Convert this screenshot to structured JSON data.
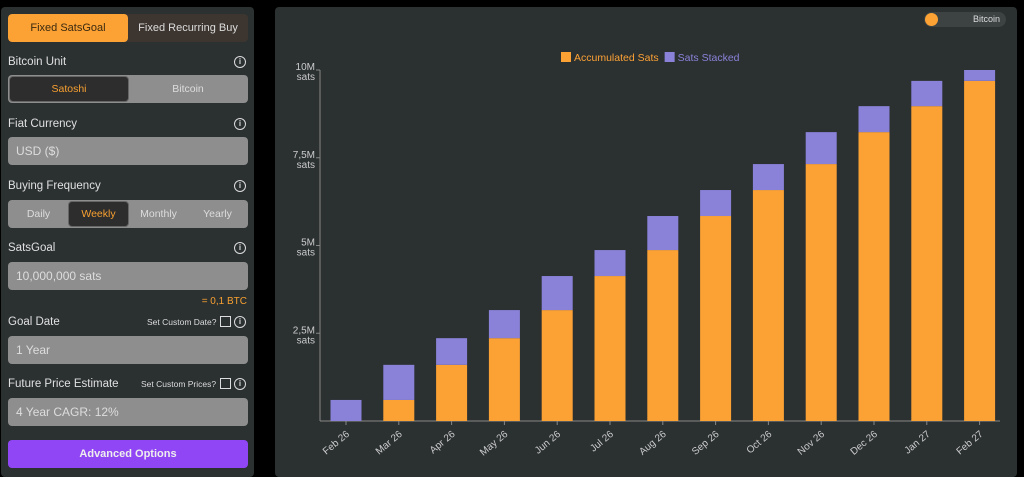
{
  "left": {
    "modes": [
      "Fixed SatsGoal",
      "Fixed Recurring Buy"
    ],
    "bitcoin_unit": {
      "label": "Bitcoin Unit",
      "options": [
        "Satoshi",
        "Bitcoin"
      ],
      "selected": "Satoshi"
    },
    "fiat_currency": {
      "label": "Fiat Currency",
      "value": "USD ($)"
    },
    "buying_frequency": {
      "label": "Buying Frequency",
      "options": [
        "Daily",
        "Weekly",
        "Monthly",
        "Yearly"
      ],
      "selected": "Weekly"
    },
    "sats_goal": {
      "label": "SatsGoal",
      "value": "10,000,000 sats",
      "btc_equiv": "= 0,1 BTC"
    },
    "goal_date": {
      "label": "Goal Date",
      "custom_label": "Set Custom Date?",
      "value": "1 Year"
    },
    "future_price": {
      "label": "Future Price Estimate",
      "custom_label": "Set Custom Prices?",
      "value": "4 Year CAGR: 12%"
    },
    "advanced": "Advanced Options"
  },
  "toggle_label": "Bitcoin",
  "colors": {
    "accumulated": "#fca235",
    "stacked": "#8a82d9"
  },
  "chart_data": {
    "type": "bar",
    "stacked": true,
    "categories": [
      "Feb 26",
      "Mar 26",
      "Apr 26",
      "May 26",
      "Jun 26",
      "Jul 26",
      "Aug 26",
      "Sep 26",
      "Oct 26",
      "Nov 26",
      "Dec 26",
      "Jan 27",
      "Feb 27"
    ],
    "series": [
      {
        "name": "Accumulated Sats",
        "values": [
          0,
          600000,
          1600000,
          2360000,
          3160000,
          4130000,
          4870000,
          5840000,
          6580000,
          7320000,
          8230000,
          8970000,
          9690000
        ]
      },
      {
        "name": "Sats Stacked",
        "values": [
          600000,
          1000000,
          760000,
          800000,
          970000,
          740000,
          970000,
          740000,
          740000,
          910000,
          740000,
          720000,
          310000
        ]
      }
    ],
    "yticks": [
      {
        "value": 2500000,
        "label": "2,5M",
        "unit": "sats"
      },
      {
        "value": 5000000,
        "label": "5M",
        "unit": "sats"
      },
      {
        "value": 7500000,
        "label": "7,5M",
        "unit": "sats"
      },
      {
        "value": 10000000,
        "label": "10M",
        "unit": "sats"
      }
    ],
    "ylim": [
      0,
      10000000
    ],
    "legend_position": "top-center"
  }
}
